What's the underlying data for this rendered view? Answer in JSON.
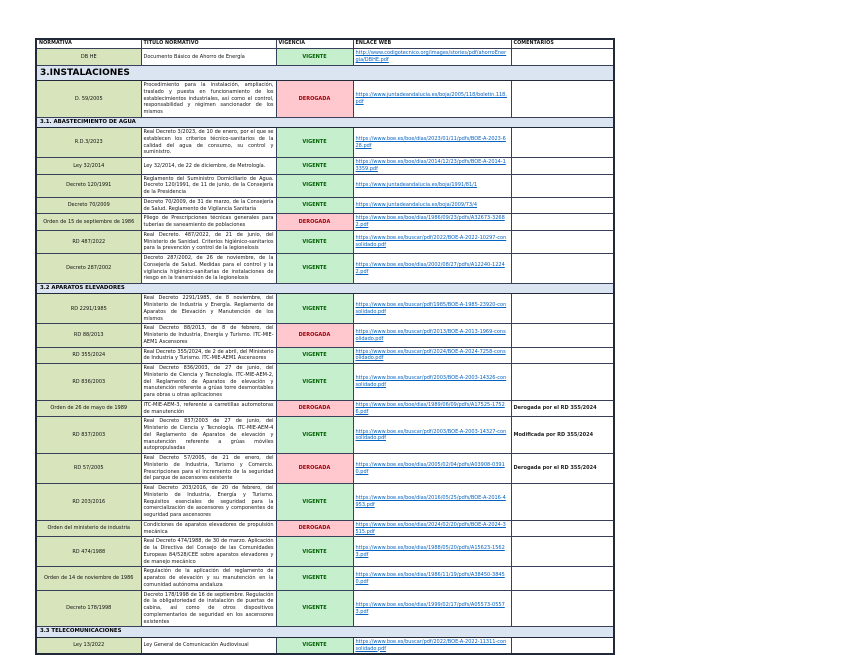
{
  "document": {
    "columns": [
      "NORMATIVA",
      "TITULO NORMATIVO",
      "VIGENCIA",
      "ENLACE WEB",
      "COMENTARIOS"
    ],
    "status_colors": {
      "VIGENTE": {
        "bg": "#c6efce",
        "fg": "#006100"
      },
      "DEROGADA": {
        "bg": "#ffc7ce",
        "fg": "#9c0006"
      }
    },
    "accent_colors": {
      "normativa_bg": "#d8e4bc",
      "section_bg": "#dbe5f1",
      "link": "#0563c1"
    },
    "rows": [
      {
        "type": "data",
        "normativa": "DB HE",
        "titulo": "Documento Básico de Ahorro de Energía",
        "vigencia": "VIGENTE",
        "enlace": "http://www.codigotecnico.org/images/stories/pdf/ahorroEnergia/DBHE.pdf",
        "comentario": ""
      },
      {
        "type": "section",
        "label": "3.INSTALACIONES"
      },
      {
        "type": "data",
        "normativa": "D. 59/2005",
        "titulo": "Procedimiento para la instalación, ampliación, traslado y puesta en funcionamiento de los establecimientos industriales, así como el control, responsabilidad y régimen sancionador de los mismos",
        "vigencia": "DEROGADA",
        "enlace": "https://www.juntadeandalucia.es/boja/2005/118/boletin.118.pdf",
        "comentario": ""
      },
      {
        "type": "subsection",
        "label": "3.1. ABASTECIMIENTO DE AGUA"
      },
      {
        "type": "data",
        "normativa": "R.D.3/2023",
        "titulo": "Real Decreto 3/2023, de 10 de enero, por el que se establecen los criterios técnico-sanitarios de la calidad del agua de consumo, su control y suministro.",
        "vigencia": "VIGENTE",
        "enlace": "https://www.boe.es/boe/dias/2023/01/11/pdfs/BOE-A-2023-628.pdf",
        "comentario": ""
      },
      {
        "type": "data",
        "normativa": "Ley 32/2014",
        "titulo": "Ley 32/2014, de 22 de diciembre, de Metrología.",
        "vigencia": "VIGENTE",
        "enlace": "https://www.boe.es/boe/dias/2014/12/23/pdfs/BOE-A-2014-13359.pdf",
        "comentario": ""
      },
      {
        "type": "data",
        "normativa": "Decreto 120/1991",
        "titulo": "Reglamento del Suministro Domiciliario de Agua. Decreto 120/1991, de 11 de junio, de la Consejería de la Presidencia",
        "vigencia": "VIGENTE",
        "enlace": "https://www.juntadeandalucia.es/boja/1991/81/1",
        "comentario": ""
      },
      {
        "type": "data",
        "normativa": "Decreto 70/2009",
        "titulo": "Decreto 70/2009, de 31 de marzo, de la Consejería de Salud. Reglamento de Vigilancia Sanitaria",
        "vigencia": "VIGENTE",
        "enlace": "https://www.juntadeandalucia.es/boja/2009/73/4",
        "comentario": ""
      },
      {
        "type": "data",
        "normativa": "Orden de 15 de septiembre de 1986",
        "titulo": "Pliego de Prescripciones técnicas generales para tuberías de saneamiento de poblaciones",
        "vigencia": "DEROGADA",
        "enlace": "https://www.boe.es/boe/dias/1986/09/23/pdfs/A32673-32682.pdf",
        "comentario": ""
      },
      {
        "type": "data",
        "normativa": "RD 487/2022",
        "titulo": "Real Decreto. 487/2022, de 21 de junio, del Ministerio de Sanidad. Criterios higiénico-sanitarios para la prevención y control de la legionelosis",
        "vigencia": "VIGENTE",
        "enlace": "https://www.boe.es/buscar/pdf/2022/BOE-A-2022-10297-consolidado.pdf",
        "comentario": ""
      },
      {
        "type": "data",
        "normativa": "Decreto 287/2002",
        "titulo": "Decreto 287/2002, de 26 de noviembre, de la Consejería de Salud. Medidas para el control y la vigilancia higiénico-sanitarias de instalaciones de riesgo en la transmisión de la legionelosis",
        "vigencia": "VIGENTE",
        "enlace": "https://www.boe.es/boe/dias/2002/08/27/pdfs/A12240-12242.pdf",
        "comentario": ""
      },
      {
        "type": "subsection",
        "label": "3.2 APARATOS ELEVADORES"
      },
      {
        "type": "data",
        "normativa": "RD 2291/1985",
        "titulo": "Real Decreto 2291/1985, de 8 noviembre, del Ministerio de Industria y Energía. Reglamento de Aparatos de Elevación y Manutención de los mismos",
        "vigencia": "VIGENTE",
        "enlace": "https://www.boe.es/buscar/pdf/1985/BOE-A-1985-23920-consolidado.pdf",
        "comentario": ""
      },
      {
        "type": "data",
        "normativa": "RD 88/2013",
        "titulo": "Real Decreto 88/2013, de 8 de febrero, del Ministerio de Industria, Energía y Turismo. ITC-MIE-AEM1 Ascensores",
        "vigencia": "DEROGADA",
        "enlace": "https://www.boe.es/buscar/pdf/2013/BOE-A-2013-1969-consolidado.pdf",
        "comentario": ""
      },
      {
        "type": "data",
        "normativa": "RD 355/2024",
        "titulo": "Real Decreto 355/2024, de 2 de abril, del Ministerio de Industria y Turismo. ITC-MIE-AEM1 Ascensores",
        "vigencia": "VIGENTE",
        "enlace": "https://www.boe.es/buscar/pdf/2024/BOE-A-2024-7258-consolidado.pdf",
        "comentario": ""
      },
      {
        "type": "data",
        "normativa": "RD 836/2003",
        "titulo": "Real Decreto 836/2003, de 27 de junio, del Ministerio de Ciencia y Tecnología. ITC-MIE-AEM-2, del Reglamento de Aparatos de elevación y manutención referente a grúas torre desmontables para obras u otras aplicaciones",
        "vigencia": "VIGENTE",
        "enlace": "https://www.boe.es/buscar/pdf/2003/BOE-A-2003-14326-consolidado.pdf",
        "comentario": ""
      },
      {
        "type": "data",
        "normativa": "Orden de 26 de mayo de 1989",
        "titulo": "ITC-MIE-AEM-3, referente a carretillas automotoras de manutención",
        "vigencia": "DEROGADA",
        "enlace": "https://www.boe.es/boe/dias/1989/06/09/pdfs/A17525-17526.pdf",
        "comentario": "Derogada por el RD 355/2024"
      },
      {
        "type": "data",
        "normativa": "RD 837/2003",
        "titulo": "Real Decreto 837/2003 de 27 de junio, del Ministerio de Ciencia y Tecnología. ITC-MIE-AEM-4 del Reglamento de Aparatos de elevación y manutención referente a grúas móviles autopropulsadas",
        "vigencia": "VIGENTE",
        "enlace": "https://www.boe.es/buscar/pdf/2003/BOE-A-2003-14327-consolidado.pdf",
        "comentario": "Modificada por RD 355/2024"
      },
      {
        "type": "data",
        "normativa": "RD 57/2005",
        "titulo": "Real Decreto 57/2005, de 21 de enero, del Ministerio de Industria, Turismo y Comercio. Prescripciones para el incremento de la seguridad del parque de ascensores existente",
        "vigencia": "DEROGADA",
        "enlace": "https://www.boe.es/boe/dias/2005/02/04/pdfs/A03908-03910.pdf",
        "comentario": "Derogada por el RD 355/2024"
      },
      {
        "type": "data",
        "normativa": "RD 203/2016",
        "titulo": "Real Decreto 203/2016, de 20 de febrero, del Ministerio de Industria, Energía y Turismo. Requisitos esenciales de seguridad para la comercialización de ascensores y componentes de seguridad para ascensores",
        "vigencia": "VIGENTE",
        "enlace": "https://www.boe.es/boe/dias/2016/05/25/pdfs/BOE-A-2016-4953.pdf",
        "comentario": ""
      },
      {
        "type": "data",
        "normativa": "Orden del ministerio de industria",
        "titulo": "Condiciones de aparatos elevadores de propulsión mecánica",
        "vigencia": "DEROGADA",
        "enlace": "https://www.boe.es/boe/dias/2024/02/20/pdfs/BOE-A-2024-3515.pdf",
        "comentario": ""
      },
      {
        "type": "data",
        "normativa": "RD 474/1988",
        "titulo": "Real Decreto 474/1988, de 30 de marzo. Aplicación de la Directiva del Consejo de las Comunidades Europeas 84/528/CEE sobre aparatos elevadores y de manejo mecánico",
        "vigencia": "VIGENTE",
        "enlace": "https://www.boe.es/boe/dias/1988/05/20/pdfs/A15623-15623.pdf",
        "comentario": ""
      },
      {
        "type": "data",
        "normativa": "Orden de 14 de noviembre de 1986",
        "titulo": "Regulación de la aplicación del reglamento de aparatos de elevación y su manutención en la comunidad autónoma andaluza",
        "vigencia": "VIGENTE",
        "enlace": "https://www.boe.es/boe/dias/1986/11/19/pdfs/A38450-38450.pdf",
        "comentario": ""
      },
      {
        "type": "data",
        "normativa": "Decreto 178/1998",
        "titulo": "Decreto 178/1998 de 16 de septiembre. Regulación de la obligatoriedad de instalación de puertas de cabina, así como de otros dispositivos complementarios de seguridad en los ascensores existentes",
        "vigencia": "VIGENTE",
        "enlace": "https://www.boe.es/boe/dias/1999/02/17/pdfs/A05573-05573.pdf",
        "comentario": ""
      },
      {
        "type": "subsection",
        "label": "3.3 TELECOMUNICACIONES"
      },
      {
        "type": "data",
        "normativa": "Ley 13/2022",
        "titulo": "Ley General de Comunicación Audiovisual",
        "vigencia": "VIGENTE",
        "enlace": "https://www.boe.es/buscar/pdf/2022/BOE-A-2022-11311-consolidado.pdf",
        "comentario": ""
      }
    ]
  }
}
